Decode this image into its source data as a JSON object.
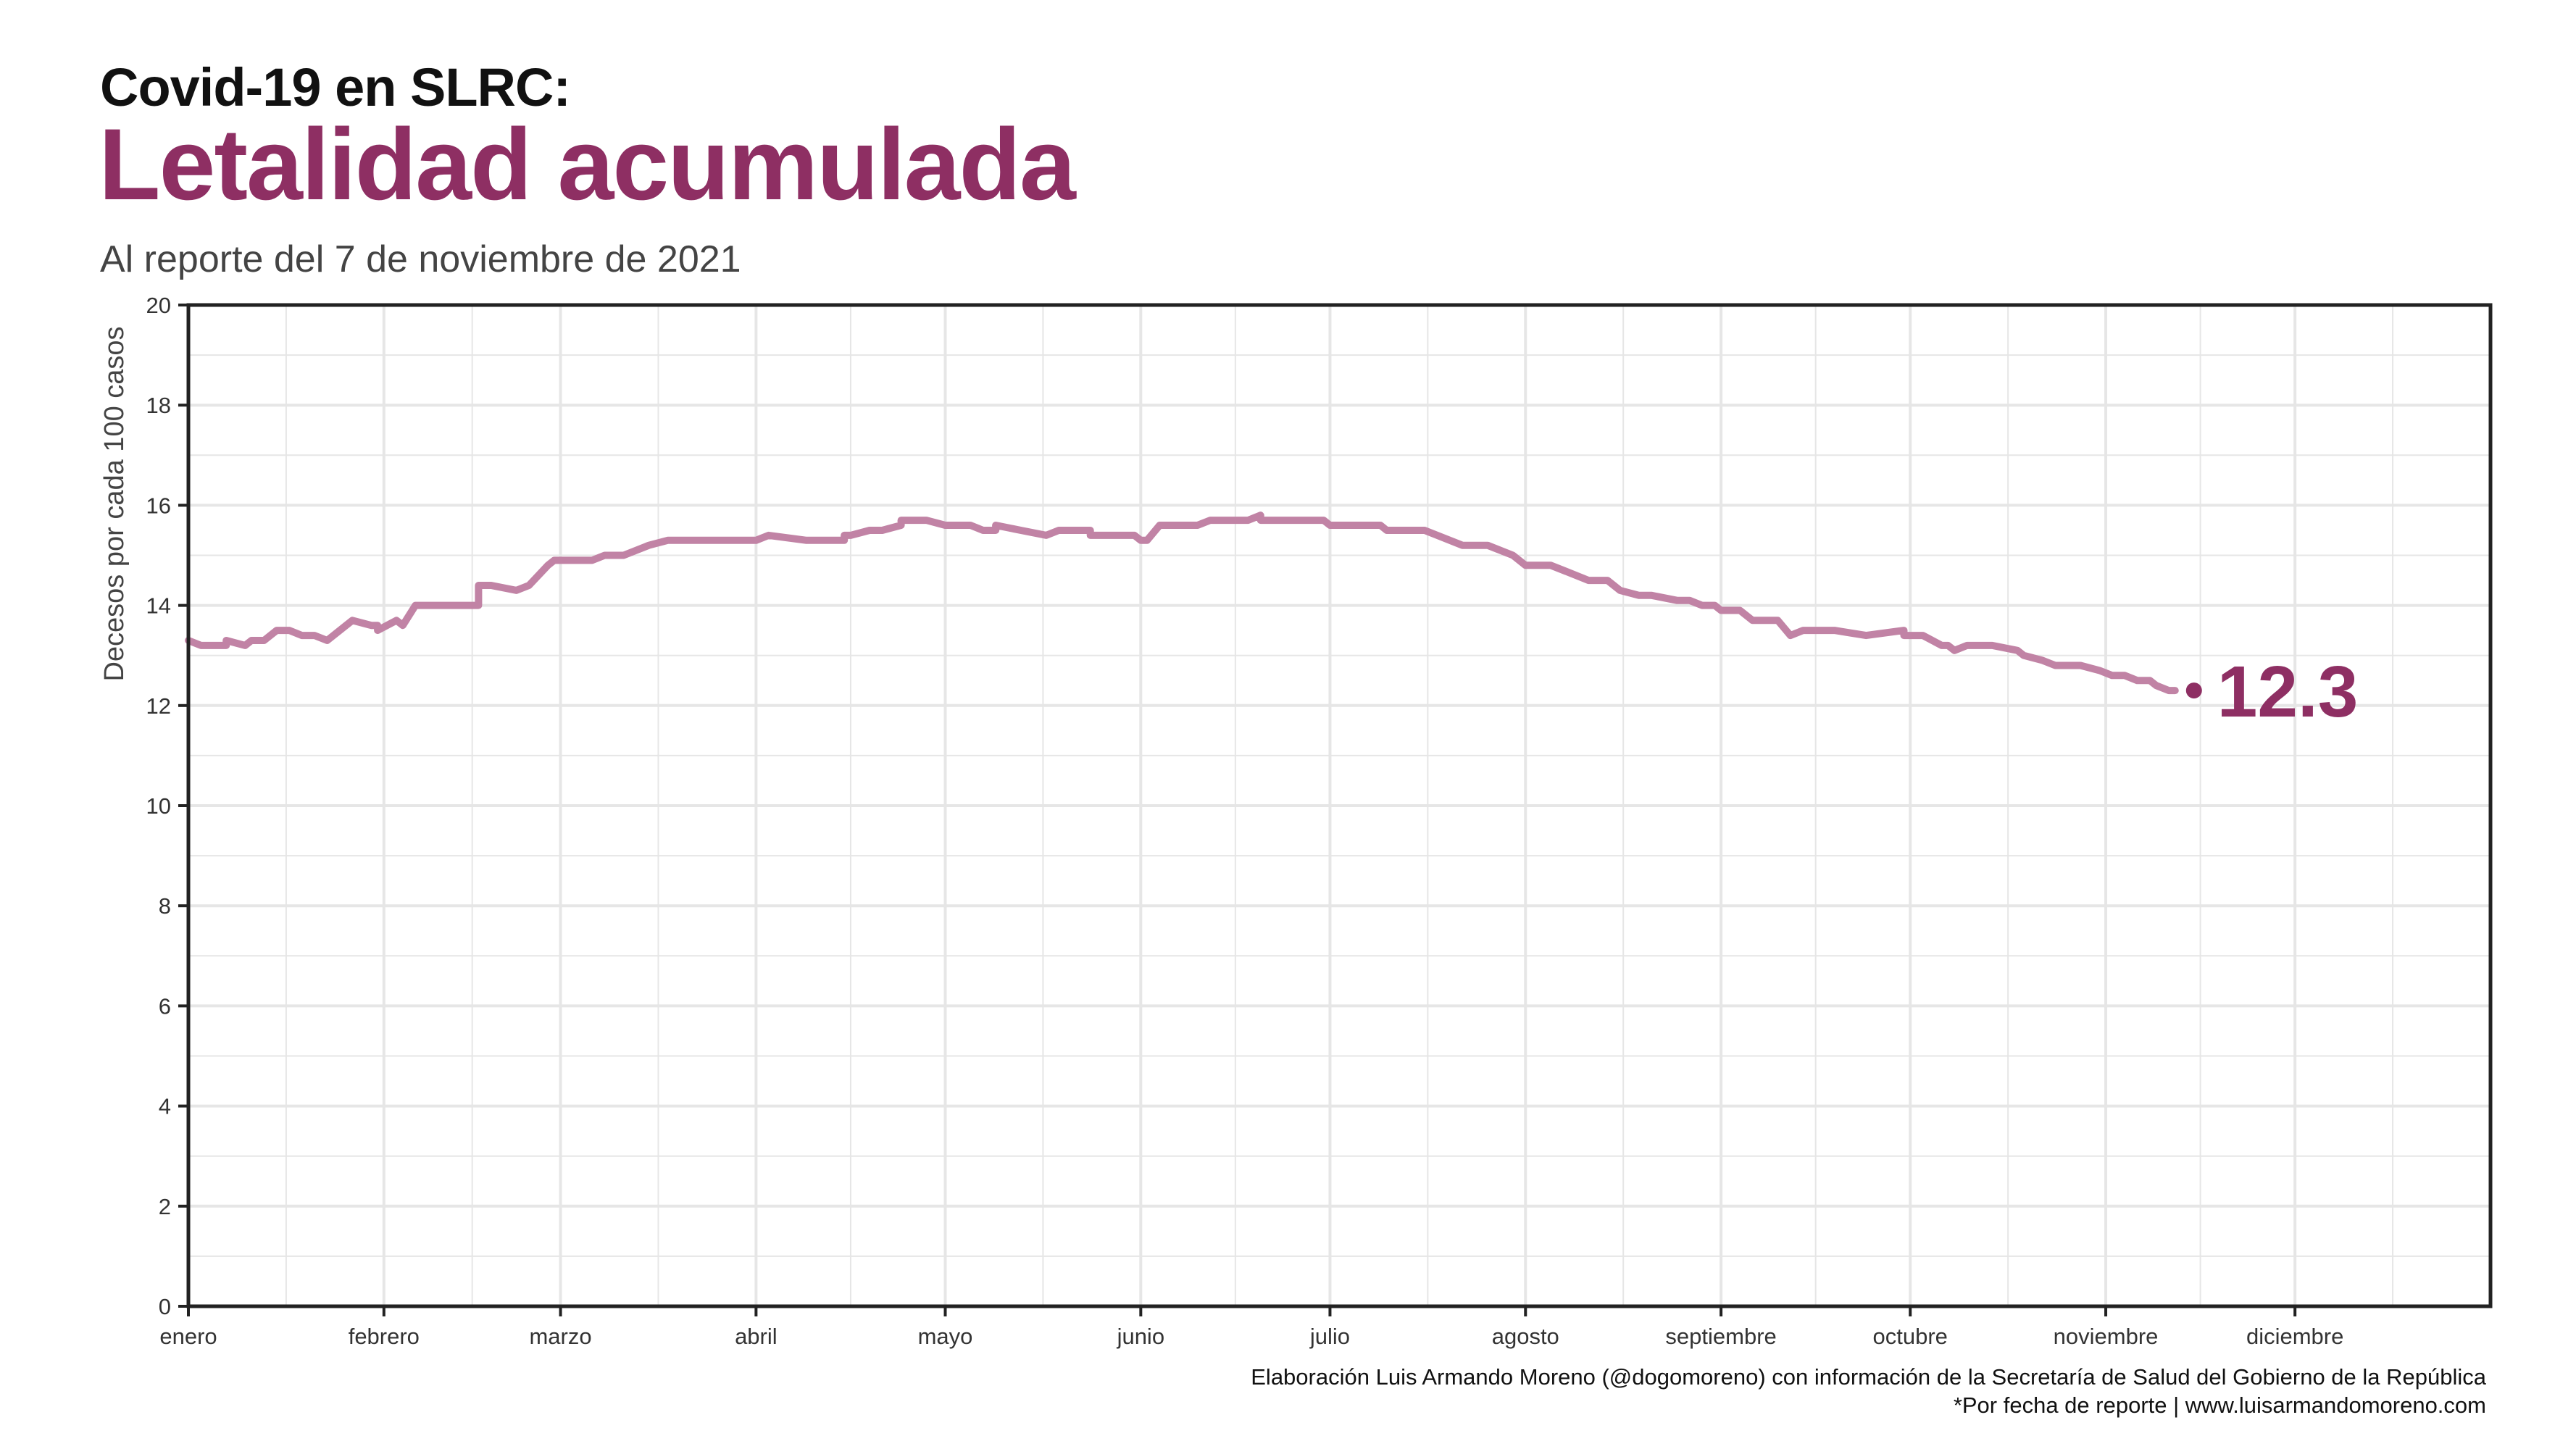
{
  "header": {
    "title_top": "Covid-19 en SLRC:",
    "title_main": "Letalidad acumulada",
    "subtitle": "Al reporte del 7 de noviembre de 2021"
  },
  "footer": {
    "caption_line1": "Elaboración Luis Armando Moreno (@dogomoreno) con información de la Secretaría de Salud del Gobierno de la República",
    "caption_line2": "*Por fecha de reporte | www.luisarmandomoreno.com"
  },
  "colors": {
    "line": "#c183a5",
    "accent": "#8e2f63",
    "grid": "#e6e6e6",
    "axis": "#222222"
  },
  "chart_data": {
    "type": "line",
    "ylabel": "Decesos por cada 100 casos",
    "xlabel": "",
    "ylim": [
      0,
      20
    ],
    "yticks": [
      0,
      2,
      4,
      6,
      8,
      10,
      12,
      14,
      16,
      18,
      20
    ],
    "xlim": [
      0,
      365
    ],
    "xticks": [
      {
        "day": 0,
        "label": "enero"
      },
      {
        "day": 31,
        "label": "febrero"
      },
      {
        "day": 59,
        "label": "marzo"
      },
      {
        "day": 90,
        "label": "abril"
      },
      {
        "day": 120,
        "label": "mayo"
      },
      {
        "day": 151,
        "label": "junio"
      },
      {
        "day": 181,
        "label": "julio"
      },
      {
        "day": 212,
        "label": "agosto"
      },
      {
        "day": 243,
        "label": "septiembre"
      },
      {
        "day": 273,
        "label": "octubre"
      },
      {
        "day": 304,
        "label": "noviembre"
      },
      {
        "day": 334,
        "label": "diciembre"
      }
    ],
    "grid": true,
    "last_value_label": "12.3",
    "series": [
      {
        "x": [
          0,
          2,
          6,
          6,
          9,
          10,
          12,
          14,
          15,
          16,
          18,
          20,
          22,
          25,
          26,
          29,
          30,
          30,
          33,
          34,
          36,
          39,
          40,
          46,
          46,
          48,
          52,
          54,
          57,
          58,
          60,
          61,
          63,
          64,
          66,
          69,
          73,
          76,
          86,
          89,
          90,
          92,
          98,
          100,
          104,
          104,
          105,
          108,
          108,
          110,
          113,
          113,
          117,
          120,
          124,
          126,
          128,
          128,
          132,
          136,
          138,
          140,
          143,
          143,
          146,
          150,
          151,
          152,
          154,
          160,
          162,
          168,
          170,
          170,
          171,
          172,
          180,
          181,
          189,
          190,
          196,
          198,
          202,
          206,
          210,
          212,
          216,
          218,
          222,
          225,
          227,
          230,
          232,
          236,
          238,
          240,
          242,
          243,
          246,
          248,
          252,
          254,
          256,
          261,
          266,
          272,
          272,
          275,
          278,
          279,
          280,
          282,
          284,
          286,
          290,
          291,
          294,
          296,
          297,
          300,
          303,
          305,
          307,
          309,
          310,
          311,
          312,
          314,
          315
        ],
        "y": [
          13.3,
          13.2,
          13.2,
          13.3,
          13.2,
          13.3,
          13.3,
          13.5,
          13.5,
          13.5,
          13.4,
          13.4,
          13.3,
          13.6,
          13.7,
          13.6,
          13.6,
          13.5,
          13.7,
          13.6,
          14.0,
          14.0,
          14.0,
          14.0,
          14.4,
          14.4,
          14.3,
          14.4,
          14.8,
          14.9,
          14.9,
          14.9,
          14.9,
          14.9,
          15.0,
          15.0,
          15.2,
          15.3,
          15.3,
          15.3,
          15.3,
          15.4,
          15.3,
          15.3,
          15.3,
          15.4,
          15.4,
          15.5,
          15.5,
          15.5,
          15.6,
          15.7,
          15.7,
          15.6,
          15.6,
          15.5,
          15.5,
          15.6,
          15.5,
          15.4,
          15.5,
          15.5,
          15.5,
          15.4,
          15.4,
          15.4,
          15.3,
          15.3,
          15.6,
          15.6,
          15.7,
          15.7,
          15.8,
          15.7,
          15.7,
          15.7,
          15.7,
          15.6,
          15.6,
          15.5,
          15.5,
          15.4,
          15.2,
          15.2,
          15.0,
          14.8,
          14.8,
          14.7,
          14.5,
          14.5,
          14.3,
          14.2,
          14.2,
          14.1,
          14.1,
          14.0,
          14.0,
          13.9,
          13.9,
          13.7,
          13.7,
          13.4,
          13.5,
          13.5,
          13.4,
          13.5,
          13.4,
          13.4,
          13.2,
          13.2,
          13.1,
          13.2,
          13.2,
          13.2,
          13.1,
          13.0,
          12.9,
          12.8,
          12.8,
          12.8,
          12.7,
          12.6,
          12.6,
          12.5,
          12.5,
          12.5,
          12.4,
          12.3,
          12.3
        ]
      }
    ]
  }
}
